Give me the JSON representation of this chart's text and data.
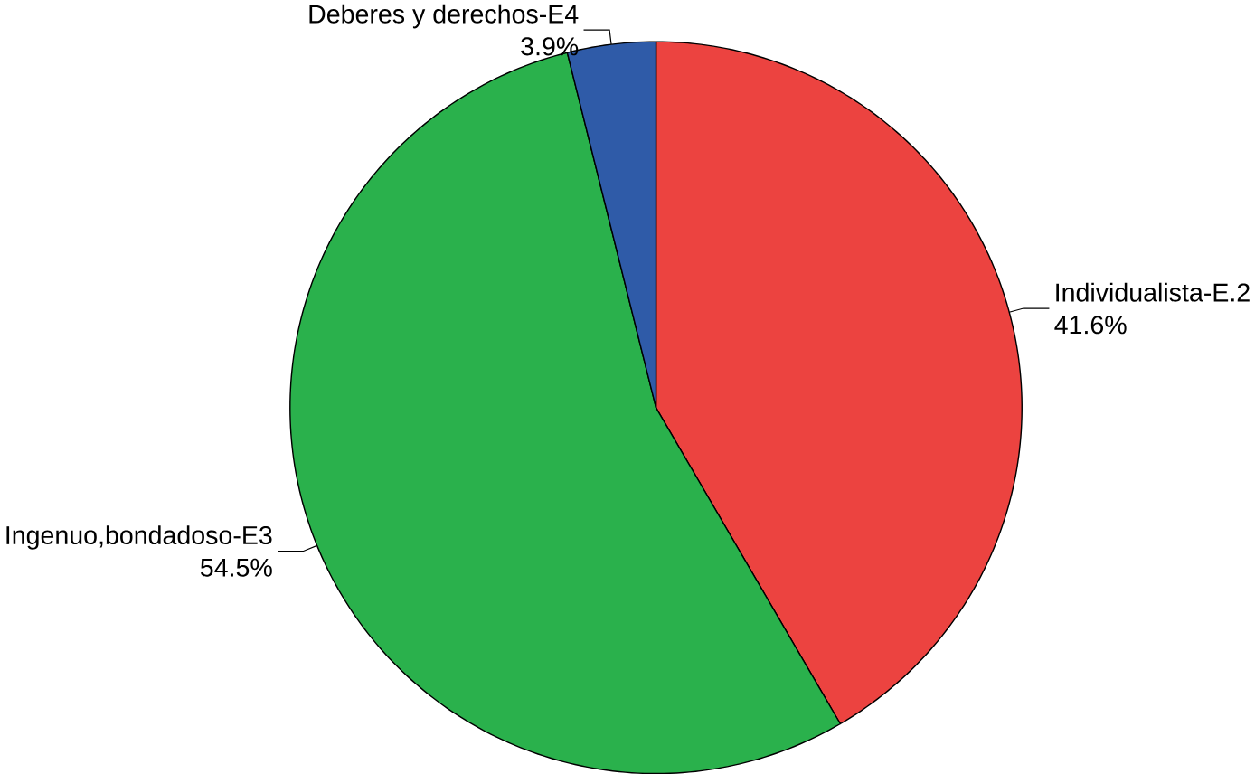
{
  "chart_data": {
    "type": "pie",
    "categories": [
      "Individualista-E.2",
      "Ingenuo,bondadoso-E3",
      "Deberes y derechos-E4"
    ],
    "values": [
      41.6,
      54.5,
      3.9
    ],
    "value_labels": [
      "41.6%",
      "54.5%",
      "3.9%"
    ],
    "colors": [
      "#ec4340",
      "#2ab14c",
      "#2f5ba8"
    ]
  }
}
